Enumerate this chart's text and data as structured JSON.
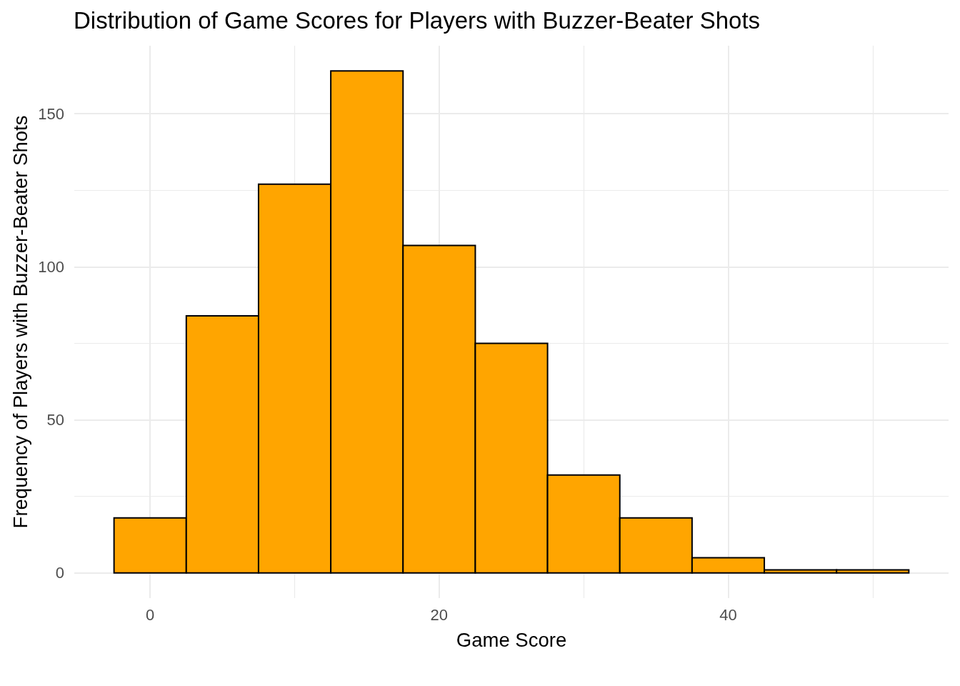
{
  "chart_data": {
    "type": "histogram",
    "title": "Distribution of Game Scores for Players with Buzzer-Beater Shots",
    "xlabel": "Game Score",
    "ylabel": "Frequency of Players with Buzzer-Beater Shots",
    "bins": [
      -2.5,
      2.5,
      7.5,
      12.5,
      17.5,
      22.5,
      27.5,
      32.5,
      37.5,
      42.5,
      47.5,
      52.5
    ],
    "values": [
      18,
      84,
      127,
      164,
      107,
      75,
      32,
      18,
      5,
      1,
      1
    ],
    "color": "#ffa500",
    "xlim": [
      -5.25,
      55.25
    ],
    "xticks": [
      0,
      {
        "value": 10,
        "label": null
      },
      20,
      {
        "value": 30,
        "label": null
      },
      40,
      {
        "value": 50,
        "label": null
      }
    ],
    "ylim": [
      -8.2,
      172.2
    ],
    "yticks": [
      0,
      {
        "value": 25,
        "label": null
      },
      50,
      {
        "value": 75,
        "label": null
      },
      100,
      {
        "value": 125,
        "label": null
      },
      150
    ],
    "grid": true
  }
}
